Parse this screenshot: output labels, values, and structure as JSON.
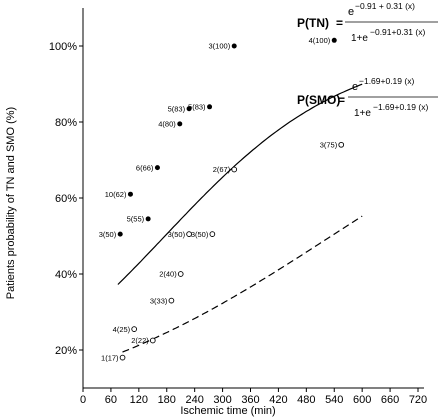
{
  "chart_data": {
    "type": "scatter",
    "xlabel": "Ischemic time (min)",
    "ylabel": "Patients probability of TN and SMO (%)",
    "xlim": [
      0,
      720
    ],
    "ylim": [
      10,
      110
    ],
    "x_ticks": [
      0,
      60,
      120,
      180,
      240,
      300,
      360,
      420,
      480,
      540,
      600,
      660,
      720
    ],
    "y_ticks": [
      {
        "value": 20,
        "label": "20%"
      },
      {
        "value": 40,
        "label": "40%"
      },
      {
        "value": 60,
        "label": "60%"
      },
      {
        "value": 80,
        "label": "80%"
      },
      {
        "value": 100,
        "label": "100%"
      }
    ],
    "series": [
      {
        "key": "tn",
        "marker": "filled-circle",
        "points": [
          {
            "x": 325,
            "y": 100,
            "label": "3(100)"
          },
          {
            "x": 540,
            "y": 101.5,
            "label": "4(100)"
          },
          {
            "x": 228,
            "y": 83.5,
            "label": "5(83)"
          },
          {
            "x": 272,
            "y": 84,
            "label": "5(83)"
          },
          {
            "x": 208,
            "y": 79.5,
            "label": "4(80)"
          },
          {
            "x": 160,
            "y": 68,
            "label": "6(66)"
          },
          {
            "x": 102,
            "y": 61,
            "label": "10(62)"
          },
          {
            "x": 140,
            "y": 54.5,
            "label": "5(55)"
          },
          {
            "x": 80,
            "y": 50.5,
            "label": "3(50)"
          }
        ],
        "curve": {
          "x_from": 75,
          "x_to": 600,
          "b0": -0.91,
          "b1": 0.31,
          "style": "solid"
        },
        "formula": {
          "name": "P(TN)",
          "equals": "=",
          "numerator_base": "e",
          "numerator_exp": "−0.91 + 0.31 (x)",
          "denominator_prefix": "1+e",
          "denominator_exp": "−0.91+0.31 (x)"
        }
      },
      {
        "key": "smo",
        "marker": "open-circle",
        "points": [
          {
            "x": 555,
            "y": 74,
            "label": "3(75)"
          },
          {
            "x": 325,
            "y": 67.5,
            "label": "2(67)"
          },
          {
            "x": 228,
            "y": 50.5,
            "label": "3(50)"
          },
          {
            "x": 278,
            "y": 50.5,
            "label": "3(50)"
          },
          {
            "x": 210,
            "y": 40,
            "label": "2(40)"
          },
          {
            "x": 190,
            "y": 33,
            "label": "3(33)"
          },
          {
            "x": 110,
            "y": 25.5,
            "label": "4(25)"
          },
          {
            "x": 150,
            "y": 22.5,
            "label": "2(22)"
          },
          {
            "x": 85,
            "y": 18,
            "label": "1(17)"
          }
        ],
        "curve": {
          "x_from": 85,
          "x_to": 600,
          "b0": -1.69,
          "b1": 0.19,
          "style": "dashed"
        },
        "formula": {
          "name": "P(SMO)",
          "equals": "=",
          "numerator_base": "e",
          "numerator_exp": "−1.69+0.19 (x)",
          "denominator_prefix": "1+e",
          "denominator_exp": "−1.69+0.19 (x)"
        }
      }
    ]
  }
}
